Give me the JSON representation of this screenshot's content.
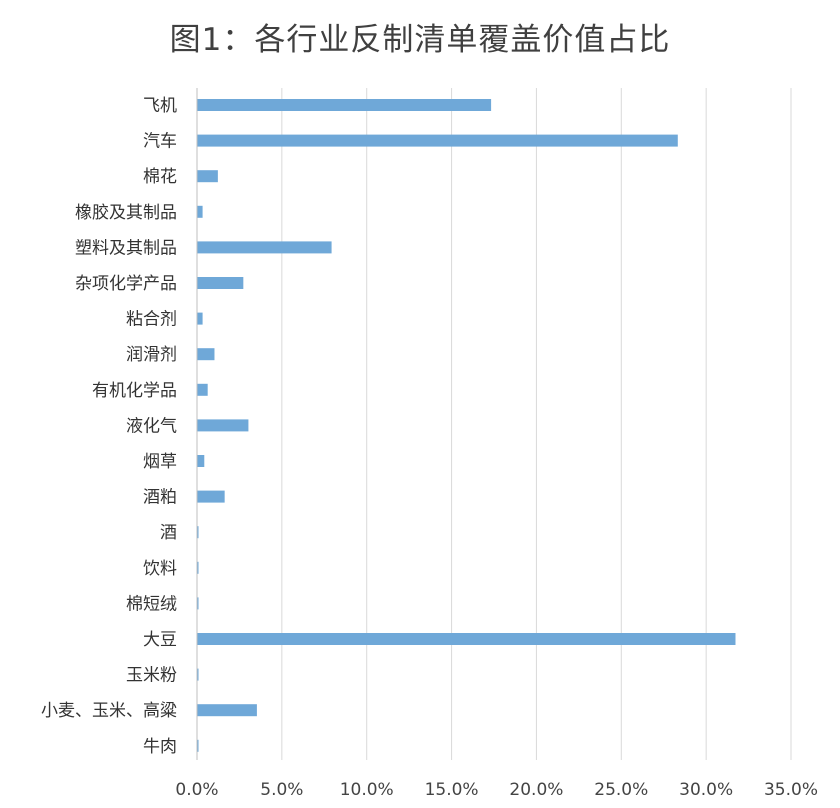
{
  "chart_data": {
    "type": "bar",
    "orientation": "horizontal",
    "title": "图1：各行业反制清单覆盖价值占比",
    "categories": [
      "飞机",
      "汽车",
      "棉花",
      "橡胶及其制品",
      "塑料及其制品",
      "杂项化学产品",
      "粘合剂",
      "润滑剂",
      "有机化学品",
      "液化气",
      "烟草",
      "酒粕",
      "酒",
      "饮料",
      "棉短绒",
      "大豆",
      "玉米粉",
      "小麦、玉米、高粱",
      "牛肉"
    ],
    "values": [
      17.3,
      28.3,
      1.2,
      0.3,
      7.9,
      2.7,
      0.3,
      1.0,
      0.6,
      3.0,
      0.4,
      1.6,
      0.03,
      0.03,
      0.03,
      31.7,
      0.03,
      3.5,
      0.03
    ],
    "xlim": [
      0,
      35
    ],
    "xticks": [
      0,
      5,
      10,
      15,
      20,
      25,
      30,
      35
    ],
    "xtick_labels": [
      "0.0%",
      "5.0%",
      "10.0%",
      "15.0%",
      "20.0%",
      "25.0%",
      "30.0%",
      "35.0%"
    ],
    "grid": "vertical",
    "bar_color": "#6fa8d8",
    "grid_color": "#d9d9d9"
  }
}
